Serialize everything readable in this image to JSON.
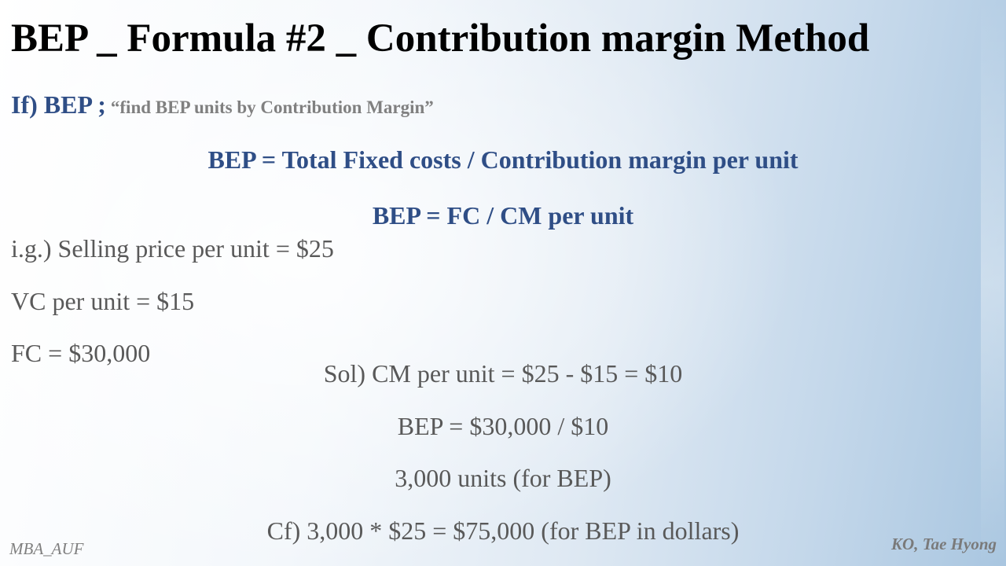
{
  "slide": {
    "title": "BEP _ Formula #2 _ Contribution margin Method",
    "if_line": {
      "lead": "If) BEP ;",
      "quote": "“find BEP units by Contribution Margin”"
    },
    "formulas": [
      "BEP = Total Fixed costs / Contribution margin per unit",
      "BEP = FC / CM per unit"
    ],
    "given": [
      "i.g.) Selling price per unit = $25",
      "VC per unit = $15",
      "FC = $30,000"
    ],
    "solution": [
      "Sol) CM per unit = $25 - $15 = $10",
      "BEP = $30,000 / $10",
      "3,000 units (for BEP)",
      "Cf) 3,000 * $25 = $75,000 (for BEP in dollars)"
    ],
    "footer": {
      "left": "MBA_AUF",
      "right": "KO, Tae Hyong"
    }
  }
}
